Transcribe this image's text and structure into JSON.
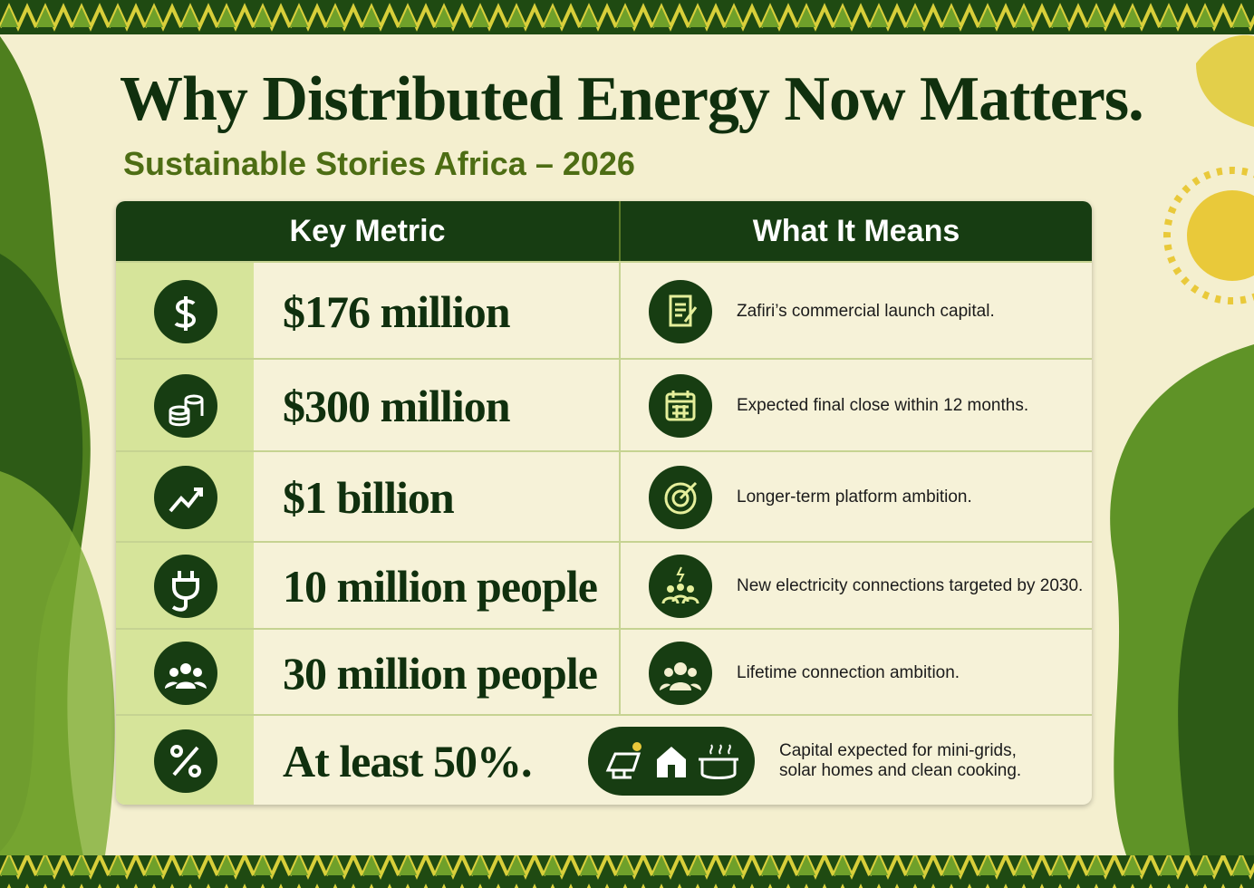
{
  "header": {
    "title": "Why Distributed Energy Now Matters.",
    "subtitle": "Sustainable Stories Africa – 2026"
  },
  "table": {
    "columns": [
      "Key Metric",
      "What It Means"
    ],
    "rows": [
      [
        "$176 million",
        "Zafiri’s commercial launch capital."
      ],
      [
        "$300 million",
        "Expected final close within 12 months."
      ],
      [
        "$1 billion",
        "Longer-term platform ambition."
      ],
      [
        "10 million people",
        "New electricity connections targeted by 2030."
      ],
      [
        "30 million people",
        "Lifetime connection ambition."
      ],
      [
        "At least 50%.",
        "Capital expected for mini-grids, solar homes and clean cooking."
      ]
    ]
  }
}
